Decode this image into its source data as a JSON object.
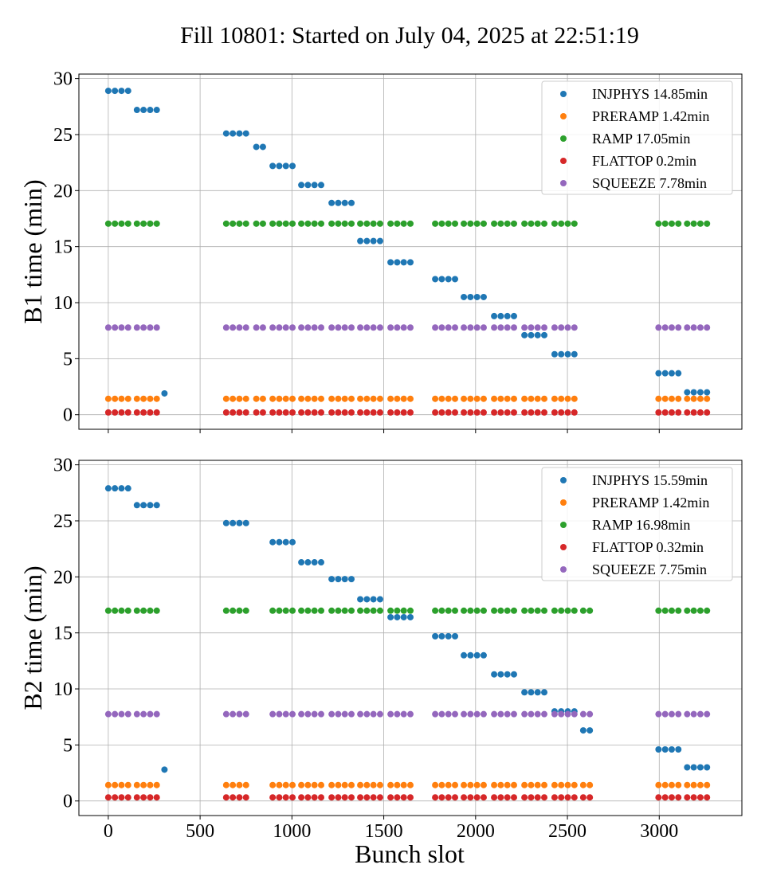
{
  "title": "Fill 10801: Started on July 04, 2025 at 22:51:19",
  "chart_data": {
    "type": "scatter",
    "title": "Fill 10801: Started on July 04, 2025 at 22:51:19",
    "xlabel": "Bunch slot",
    "xlim": [
      -160,
      3450
    ],
    "xticks": [
      0,
      500,
      1000,
      1500,
      2000,
      2500,
      3000
    ],
    "yticks": [
      0,
      5,
      10,
      15,
      20,
      25,
      30
    ],
    "grid": true,
    "legend_position": "top-right",
    "colors": {
      "INJPHYS": "#1f77b4",
      "PRERAMP": "#ff7f0e",
      "RAMP": "#2ca02c",
      "FLATTOP": "#d62728",
      "SQUEEZE": "#9467bd"
    },
    "panels": [
      {
        "ylabel": "B1 time (min)",
        "ylim": [
          -1.3,
          30.4
        ],
        "legend": [
          "INJPHYS 14.85min",
          "PRERAMP 1.42min",
          "RAMP 17.05min",
          "FLATTOP 0.2min",
          "SQUEEZE 7.78min"
        ],
        "groups": [
          {
            "phase": "INJPHYS",
            "x": [
              0,
              36,
              72,
              108
            ],
            "y": 28.9
          },
          {
            "phase": "INJPHYS",
            "x": [
              156,
              192,
              228,
              264
            ],
            "y": 27.2
          },
          {
            "phase": "INJPHYS",
            "x": [
              306
            ],
            "y": 1.9
          },
          {
            "phase": "INJPHYS",
            "x": [
              642,
              678,
              714,
              750
            ],
            "y": 25.1
          },
          {
            "phase": "INJPHYS",
            "x": [
              806,
              842
            ],
            "y": 23.9
          },
          {
            "phase": "INJPHYS",
            "x": [
              895,
              931,
              967,
              1003
            ],
            "y": 22.2
          },
          {
            "phase": "INJPHYS",
            "x": [
              1051,
              1087,
              1123,
              1159
            ],
            "y": 20.5
          },
          {
            "phase": "INJPHYS",
            "x": [
              1216,
              1252,
              1288,
              1324
            ],
            "y": 18.9
          },
          {
            "phase": "INJPHYS",
            "x": [
              1372,
              1408,
              1444,
              1480
            ],
            "y": 15.5
          },
          {
            "phase": "INJPHYS",
            "x": [
              1537,
              1573,
              1609,
              1645
            ],
            "y": 13.6
          },
          {
            "phase": "INJPHYS",
            "x": [
              1780,
              1816,
              1852,
              1888
            ],
            "y": 12.1
          },
          {
            "phase": "INJPHYS",
            "x": [
              1936,
              1972,
              2008,
              2044
            ],
            "y": 10.5
          },
          {
            "phase": "INJPHYS",
            "x": [
              2101,
              2137,
              2173,
              2209
            ],
            "y": 8.8
          },
          {
            "phase": "INJPHYS",
            "x": [
              2266,
              2302,
              2338,
              2374
            ],
            "y": 7.1
          },
          {
            "phase": "INJPHYS",
            "x": [
              2430,
              2466,
              2502,
              2538
            ],
            "y": 5.4
          },
          {
            "phase": "INJPHYS",
            "x": [
              2996,
              3032,
              3068,
              3104
            ],
            "y": 3.7
          },
          {
            "phase": "INJPHYS",
            "x": [
              3152,
              3188,
              3224,
              3260
            ],
            "y": 2.0
          },
          {
            "phase": "RAMP",
            "x": [
              0,
              36,
              72,
              108,
              156,
              192,
              228,
              264,
              642,
              678,
              714,
              750,
              806,
              842,
              895,
              931,
              967,
              1003,
              1051,
              1087,
              1123,
              1159,
              1216,
              1252,
              1288,
              1324,
              1372,
              1408,
              1444,
              1480,
              1537,
              1573,
              1609,
              1645,
              1780,
              1816,
              1852,
              1888,
              1936,
              1972,
              2008,
              2044,
              2101,
              2137,
              2173,
              2209,
              2266,
              2302,
              2338,
              2374,
              2430,
              2466,
              2502,
              2538,
              2996,
              3032,
              3068,
              3104,
              3152,
              3188,
              3224,
              3260
            ],
            "y": 17.05
          },
          {
            "phase": "SQUEEZE",
            "x": [
              0,
              36,
              72,
              108,
              156,
              192,
              228,
              264,
              642,
              678,
              714,
              750,
              806,
              842,
              895,
              931,
              967,
              1003,
              1051,
              1087,
              1123,
              1159,
              1216,
              1252,
              1288,
              1324,
              1372,
              1408,
              1444,
              1480,
              1537,
              1573,
              1609,
              1645,
              1780,
              1816,
              1852,
              1888,
              1936,
              1972,
              2008,
              2044,
              2101,
              2137,
              2173,
              2209,
              2266,
              2302,
              2338,
              2374,
              2430,
              2466,
              2502,
              2538,
              2996,
              3032,
              3068,
              3104,
              3152,
              3188,
              3224,
              3260
            ],
            "y": 7.78
          },
          {
            "phase": "PRERAMP",
            "x": [
              0,
              36,
              72,
              108,
              156,
              192,
              228,
              264,
              642,
              678,
              714,
              750,
              806,
              842,
              895,
              931,
              967,
              1003,
              1051,
              1087,
              1123,
              1159,
              1216,
              1252,
              1288,
              1324,
              1372,
              1408,
              1444,
              1480,
              1537,
              1573,
              1609,
              1645,
              1780,
              1816,
              1852,
              1888,
              1936,
              1972,
              2008,
              2044,
              2101,
              2137,
              2173,
              2209,
              2266,
              2302,
              2338,
              2374,
              2430,
              2466,
              2502,
              2538,
              2996,
              3032,
              3068,
              3104,
              3152,
              3188,
              3224,
              3260
            ],
            "y": 1.42
          },
          {
            "phase": "FLATTOP",
            "x": [
              0,
              36,
              72,
              108,
              156,
              192,
              228,
              264,
              642,
              678,
              714,
              750,
              806,
              842,
              895,
              931,
              967,
              1003,
              1051,
              1087,
              1123,
              1159,
              1216,
              1252,
              1288,
              1324,
              1372,
              1408,
              1444,
              1480,
              1537,
              1573,
              1609,
              1645,
              1780,
              1816,
              1852,
              1888,
              1936,
              1972,
              2008,
              2044,
              2101,
              2137,
              2173,
              2209,
              2266,
              2302,
              2338,
              2374,
              2430,
              2466,
              2502,
              2538,
              2996,
              3032,
              3068,
              3104,
              3152,
              3188,
              3224,
              3260
            ],
            "y": 0.2
          }
        ]
      },
      {
        "ylabel": "B2 time (min)",
        "ylim": [
          -1.3,
          30.4
        ],
        "legend": [
          "INJPHYS 15.59min",
          "PRERAMP 1.42min",
          "RAMP 16.98min",
          "FLATTOP 0.32min",
          "SQUEEZE 7.75min"
        ],
        "groups": [
          {
            "phase": "INJPHYS",
            "x": [
              0,
              36,
              72,
              108
            ],
            "y": 27.9
          },
          {
            "phase": "INJPHYS",
            "x": [
              156,
              192,
              228,
              264
            ],
            "y": 26.4
          },
          {
            "phase": "INJPHYS",
            "x": [
              306
            ],
            "y": 2.8
          },
          {
            "phase": "INJPHYS",
            "x": [
              642,
              678,
              714,
              750
            ],
            "y": 24.8
          },
          {
            "phase": "INJPHYS",
            "x": [
              895,
              931,
              967,
              1003
            ],
            "y": 23.1
          },
          {
            "phase": "INJPHYS",
            "x": [
              1051,
              1087,
              1123,
              1159
            ],
            "y": 21.3
          },
          {
            "phase": "INJPHYS",
            "x": [
              1216,
              1252,
              1288,
              1324
            ],
            "y": 19.8
          },
          {
            "phase": "INJPHYS",
            "x": [
              1372,
              1408,
              1444,
              1480
            ],
            "y": 18.0
          },
          {
            "phase": "INJPHYS",
            "x": [
              1537,
              1573,
              1609,
              1645
            ],
            "y": 16.4
          },
          {
            "phase": "INJPHYS",
            "x": [
              1780,
              1816,
              1852,
              1888
            ],
            "y": 14.7
          },
          {
            "phase": "INJPHYS",
            "x": [
              1936,
              1972,
              2008,
              2044
            ],
            "y": 13.0
          },
          {
            "phase": "INJPHYS",
            "x": [
              2101,
              2137,
              2173,
              2209
            ],
            "y": 11.3
          },
          {
            "phase": "INJPHYS",
            "x": [
              2266,
              2302,
              2338,
              2374
            ],
            "y": 9.7
          },
          {
            "phase": "INJPHYS",
            "x": [
              2430,
              2466,
              2502,
              2538
            ],
            "y": 8.0
          },
          {
            "phase": "INJPHYS",
            "x": [
              2586,
              2622
            ],
            "y": 6.3
          },
          {
            "phase": "INJPHYS",
            "x": [
              2996,
              3032,
              3068,
              3104
            ],
            "y": 4.6
          },
          {
            "phase": "INJPHYS",
            "x": [
              3152,
              3188,
              3224,
              3260
            ],
            "y": 3.0
          },
          {
            "phase": "RAMP",
            "x": [
              0,
              36,
              72,
              108,
              156,
              192,
              228,
              264,
              642,
              678,
              714,
              750,
              895,
              931,
              967,
              1003,
              1051,
              1087,
              1123,
              1159,
              1216,
              1252,
              1288,
              1324,
              1372,
              1408,
              1444,
              1480,
              1537,
              1573,
              1609,
              1645,
              1780,
              1816,
              1852,
              1888,
              1936,
              1972,
              2008,
              2044,
              2101,
              2137,
              2173,
              2209,
              2266,
              2302,
              2338,
              2374,
              2430,
              2466,
              2502,
              2538,
              2586,
              2622,
              2996,
              3032,
              3068,
              3104,
              3152,
              3188,
              3224,
              3260
            ],
            "y": 16.98
          },
          {
            "phase": "SQUEEZE",
            "x": [
              0,
              36,
              72,
              108,
              156,
              192,
              228,
              264,
              642,
              678,
              714,
              750,
              895,
              931,
              967,
              1003,
              1051,
              1087,
              1123,
              1159,
              1216,
              1252,
              1288,
              1324,
              1372,
              1408,
              1444,
              1480,
              1537,
              1573,
              1609,
              1645,
              1780,
              1816,
              1852,
              1888,
              1936,
              1972,
              2008,
              2044,
              2101,
              2137,
              2173,
              2209,
              2266,
              2302,
              2338,
              2374,
              2430,
              2466,
              2502,
              2538,
              2586,
              2622,
              2996,
              3032,
              3068,
              3104,
              3152,
              3188,
              3224,
              3260
            ],
            "y": 7.75
          },
          {
            "phase": "PRERAMP",
            "x": [
              0,
              36,
              72,
              108,
              156,
              192,
              228,
              264,
              642,
              678,
              714,
              750,
              895,
              931,
              967,
              1003,
              1051,
              1087,
              1123,
              1159,
              1216,
              1252,
              1288,
              1324,
              1372,
              1408,
              1444,
              1480,
              1537,
              1573,
              1609,
              1645,
              1780,
              1816,
              1852,
              1888,
              1936,
              1972,
              2008,
              2044,
              2101,
              2137,
              2173,
              2209,
              2266,
              2302,
              2338,
              2374,
              2430,
              2466,
              2502,
              2538,
              2586,
              2622,
              2996,
              3032,
              3068,
              3104,
              3152,
              3188,
              3224,
              3260
            ],
            "y": 1.42
          },
          {
            "phase": "FLATTOP",
            "x": [
              0,
              36,
              72,
              108,
              156,
              192,
              228,
              264,
              642,
              678,
              714,
              750,
              895,
              931,
              967,
              1003,
              1051,
              1087,
              1123,
              1159,
              1216,
              1252,
              1288,
              1324,
              1372,
              1408,
              1444,
              1480,
              1537,
              1573,
              1609,
              1645,
              1780,
              1816,
              1852,
              1888,
              1936,
              1972,
              2008,
              2044,
              2101,
              2137,
              2173,
              2209,
              2266,
              2302,
              2338,
              2374,
              2430,
              2466,
              2502,
              2538,
              2586,
              2622,
              2996,
              3032,
              3068,
              3104,
              3152,
              3188,
              3224,
              3260
            ],
            "y": 0.32
          }
        ]
      }
    ]
  }
}
